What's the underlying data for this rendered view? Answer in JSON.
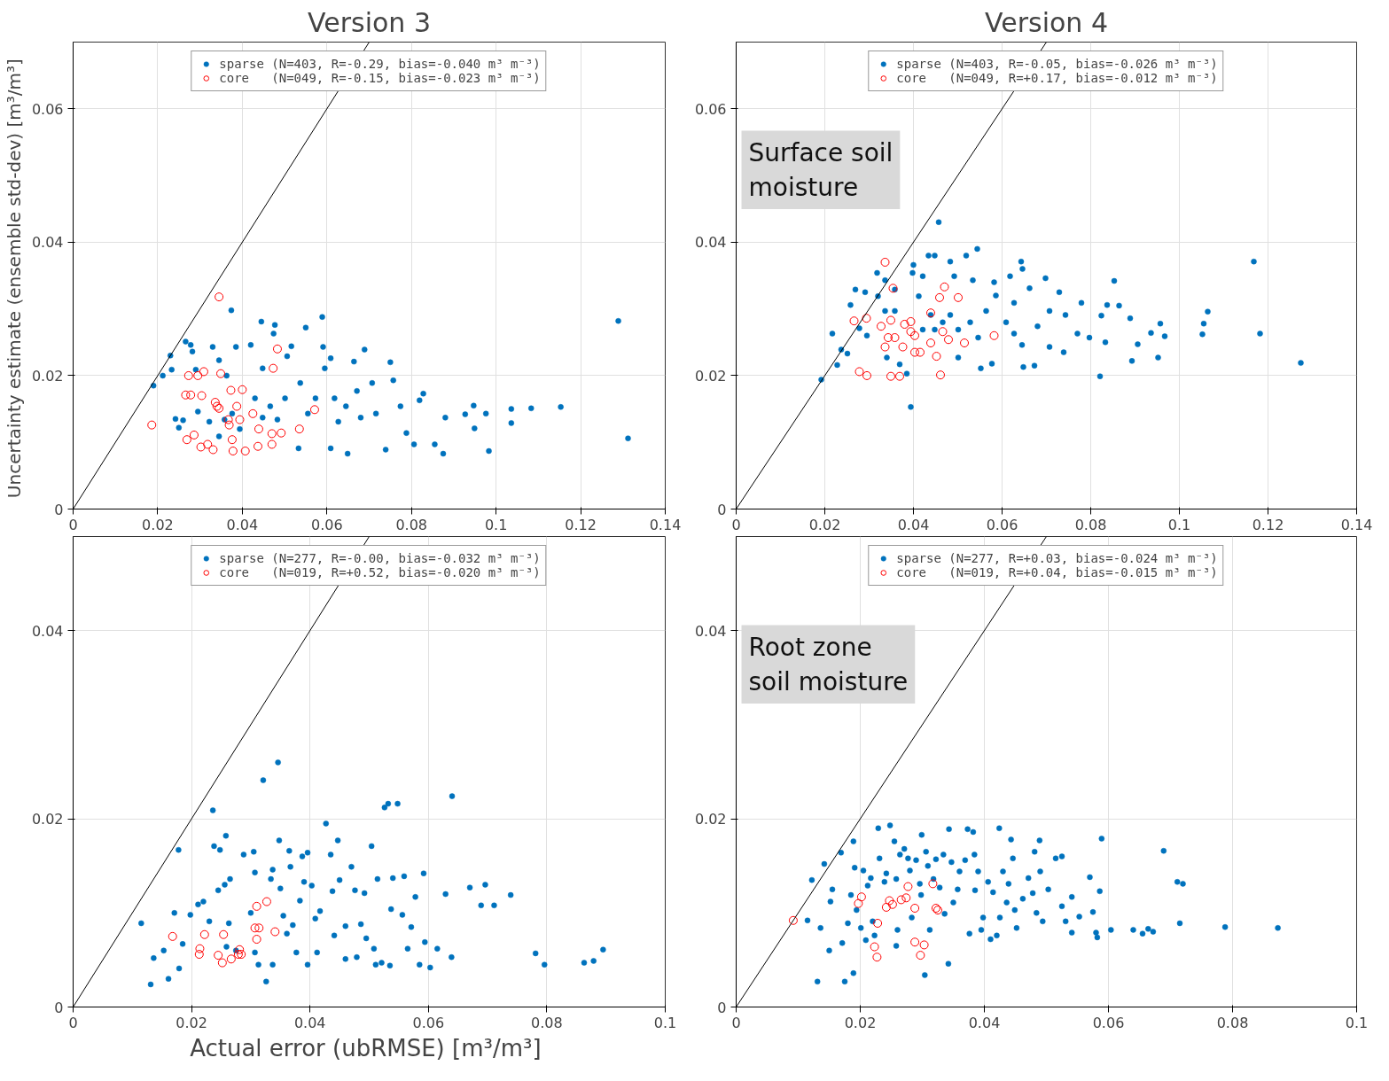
{
  "chart_data": [
    {
      "type": "scatter",
      "title": "Version 3",
      "ylabel": "Uncertainty estimate (ensemble std-dev)  [m³/m³]",
      "xlim": [
        0,
        0.14
      ],
      "ylim": [
        0,
        0.07
      ],
      "xticks": [
        0,
        0.02,
        0.04,
        0.06,
        0.08,
        0.1,
        0.12,
        0.14
      ],
      "yticks": [
        0,
        0.02,
        0.04,
        0.06
      ],
      "grid": true,
      "legend": "top",
      "marker": "circle",
      "series": [
        {
          "name": "sparse (N=403, R=-0.29, bias=-0.040 m³ m⁻³)",
          "color": "#0072bd",
          "x": [
            0.019,
            0.0212,
            0.023,
            0.0233,
            0.0266,
            0.0278,
            0.0282,
            0.0242,
            0.025,
            0.026,
            0.0295,
            0.029,
            0.033,
            0.0345,
            0.0374,
            0.0385,
            0.0363,
            0.0322,
            0.0345,
            0.0358,
            0.0376,
            0.0394,
            0.042,
            0.0445,
            0.0477,
            0.0474,
            0.0448,
            0.043,
            0.0448,
            0.0466,
            0.0483,
            0.0501,
            0.0506,
            0.0516,
            0.055,
            0.0533,
            0.0537,
            0.0555,
            0.0573,
            0.0589,
            0.0591,
            0.0595,
            0.0609,
            0.0609,
            0.0618,
            0.0627,
            0.0645,
            0.0649,
            0.0664,
            0.0671,
            0.068,
            0.0689,
            0.0707,
            0.0716,
            0.0739,
            0.075,
            0.0757,
            0.0774,
            0.0788,
            0.0806,
            0.0819,
            0.0828,
            0.0855,
            0.088,
            0.0875,
            0.0927,
            0.0947,
            0.0949,
            0.0976,
            0.0983,
            0.1036,
            0.1036,
            0.1083,
            0.1153,
            0.1289,
            0.1312
          ],
          "values": [
            0.0185,
            0.02,
            0.023,
            0.0209,
            0.0251,
            0.0246,
            0.0236,
            0.0135,
            0.0122,
            0.0133,
            0.0146,
            0.0209,
            0.0243,
            0.0223,
            0.0298,
            0.0243,
            0.02,
            0.0131,
            0.0109,
            0.0134,
            0.0143,
            0.012,
            0.0246,
            0.0281,
            0.0276,
            0.0263,
            0.0211,
            0.0166,
            0.0137,
            0.0154,
            0.0134,
            0.0166,
            0.0229,
            0.0244,
            0.0272,
            0.0091,
            0.0189,
            0.0143,
            0.0166,
            0.0288,
            0.0243,
            0.0211,
            0.0226,
            0.0091,
            0.0166,
            0.0131,
            0.0154,
            0.0083,
            0.0221,
            0.0177,
            0.0137,
            0.0239,
            0.0189,
            0.0143,
            0.0089,
            0.022,
            0.0193,
            0.0154,
            0.0114,
            0.0097,
            0.0163,
            0.0173,
            0.0097,
            0.0137,
            0.0083,
            0.0142,
            0.0155,
            0.0121,
            0.0143,
            0.0087,
            0.015,
            0.0129,
            0.0151,
            0.0153,
            0.0282,
            0.0106
          ]
        },
        {
          "name": "core   (N=049, R=-0.15, bias=-0.023 m³ m⁻³)",
          "color": "#ff0000",
          "x": [
            0.0345,
            0.0186,
            0.0273,
            0.0295,
            0.0309,
            0.0349,
            0.0266,
            0.0278,
            0.0304,
            0.0336,
            0.0345,
            0.0373,
            0.04,
            0.0387,
            0.0367,
            0.0394,
            0.0369,
            0.0425,
            0.0439,
            0.047,
            0.0483,
            0.0473,
            0.0492,
            0.0535,
            0.0571,
            0.0269,
            0.0286,
            0.0302,
            0.0318,
            0.0331,
            0.0376,
            0.0378,
            0.0407,
            0.0437,
            0.047,
            0.034
          ],
          "values": [
            0.0318,
            0.0126,
            0.02,
            0.02,
            0.0206,
            0.0203,
            0.0171,
            0.0171,
            0.017,
            0.016,
            0.0151,
            0.0178,
            0.0179,
            0.0154,
            0.0134,
            0.0134,
            0.0126,
            0.0143,
            0.012,
            0.0113,
            0.024,
            0.0211,
            0.0114,
            0.012,
            0.0149,
            0.0104,
            0.0111,
            0.0093,
            0.0097,
            0.0089,
            0.0104,
            0.0087,
            0.0087,
            0.0094,
            0.0097,
            0.0154
          ]
        },
        {
          "type": "line",
          "color": "#000000",
          "marker": "none",
          "x": [
            0,
            0.07
          ],
          "values": [
            0,
            0.07
          ]
        }
      ]
    },
    {
      "type": "scatter",
      "title": "Version 4",
      "annotations": [
        "Surface soil\nmoisture"
      ],
      "xlim": [
        0,
        0.14
      ],
      "ylim": [
        0,
        0.07
      ],
      "xticks": [
        0,
        0.02,
        0.04,
        0.06,
        0.08,
        0.1,
        0.12,
        0.14
      ],
      "yticks": [
        0,
        0.02,
        0.04,
        0.06
      ],
      "grid": true,
      "legend": "top",
      "marker": "circle",
      "series": [
        {
          "name": "sparse (N=403, R=-0.05, bias=-0.026 m³ m⁻³)",
          "color": "#0072bd",
          "x": [
            0.0192,
            0.0217,
            0.0237,
            0.0251,
            0.0228,
            0.0258,
            0.0269,
            0.0291,
            0.0278,
            0.0295,
            0.0318,
            0.032,
            0.0336,
            0.0358,
            0.0336,
            0.0358,
            0.034,
            0.0369,
            0.0385,
            0.0394,
            0.04,
            0.0398,
            0.0421,
            0.0434,
            0.0448,
            0.0457,
            0.0412,
            0.0421,
            0.0439,
            0.0448,
            0.0466,
            0.0483,
            0.0492,
            0.0519,
            0.0544,
            0.0534,
            0.0483,
            0.0501,
            0.0528,
            0.0546,
            0.0564,
            0.0582,
            0.0586,
            0.0501,
            0.0552,
            0.0577,
            0.0618,
            0.0643,
            0.0646,
            0.0627,
            0.0609,
            0.0627,
            0.0645,
            0.0648,
            0.0673,
            0.0662,
            0.068,
            0.0698,
            0.0707,
            0.0707,
            0.0729,
            0.0743,
            0.0739,
            0.077,
            0.0779,
            0.0797,
            0.0821,
            0.0824,
            0.0837,
            0.0833,
            0.0853,
            0.0864,
            0.0889,
            0.0893,
            0.0906,
            0.0936,
            0.0952,
            0.0957,
            0.0967,
            0.1052,
            0.1055,
            0.1064,
            0.1168,
            0.1182,
            0.1274
          ],
          "values": [
            0.0194,
            0.0263,
            0.0239,
            0.0233,
            0.0216,
            0.0306,
            0.0329,
            0.0325,
            0.0271,
            0.026,
            0.0354,
            0.0319,
            0.0343,
            0.0329,
            0.0297,
            0.0297,
            0.0227,
            0.0217,
            0.0203,
            0.0153,
            0.0366,
            0.0354,
            0.0349,
            0.038,
            0.038,
            0.043,
            0.0319,
            0.0269,
            0.0291,
            0.0269,
            0.028,
            0.0371,
            0.0349,
            0.038,
            0.039,
            0.0343,
            0.0291,
            0.0269,
            0.028,
            0.0257,
            0.0297,
            0.034,
            0.032,
            0.0227,
            0.0211,
            0.0218,
            0.0349,
            0.0371,
            0.036,
            0.0309,
            0.028,
            0.0263,
            0.0246,
            0.0213,
            0.0215,
            0.0331,
            0.0274,
            0.0346,
            0.0297,
            0.0243,
            0.0325,
            0.0291,
            0.0235,
            0.0263,
            0.0309,
            0.0257,
            0.0199,
            0.029,
            0.0306,
            0.025,
            0.0342,
            0.0305,
            0.0286,
            0.0222,
            0.0247,
            0.0264,
            0.0227,
            0.0278,
            0.0259,
            0.0262,
            0.0278,
            0.0296,
            0.0371,
            0.0263,
            0.0219
          ]
        },
        {
          "name": "core   (N=049, R=+0.17, bias=-0.012 m³ m⁻³)",
          "color": "#ff0000",
          "x": [
            0.0336,
            0.0266,
            0.0294,
            0.0354,
            0.0278,
            0.0295,
            0.0349,
            0.0369,
            0.0327,
            0.0349,
            0.0336,
            0.0358,
            0.038,
            0.0394,
            0.0376,
            0.0403,
            0.0403,
            0.0415,
            0.0439,
            0.0439,
            0.0452,
            0.0461,
            0.0459,
            0.047,
            0.0466,
            0.0479,
            0.0501,
            0.0515,
            0.0582,
            0.0343,
            0.0394
          ],
          "values": [
            0.037,
            0.0282,
            0.0286,
            0.0331,
            0.0206,
            0.02,
            0.0199,
            0.0199,
            0.0274,
            0.0283,
            0.0243,
            0.0257,
            0.0277,
            0.0281,
            0.0243,
            0.026,
            0.0235,
            0.0235,
            0.0294,
            0.0249,
            0.0229,
            0.0201,
            0.0317,
            0.0333,
            0.0266,
            0.0254,
            0.0317,
            0.0249,
            0.026,
            0.0257,
            0.0266
          ]
        },
        {
          "type": "line",
          "color": "#000000",
          "marker": "none",
          "x": [
            0,
            0.07
          ],
          "values": [
            0,
            0.07
          ]
        }
      ]
    },
    {
      "type": "scatter",
      "xlabel": "Actual error (ubRMSE)  [m³/m³]",
      "xlim": [
        0,
        0.1
      ],
      "ylim": [
        0,
        0.05
      ],
      "xticks": [
        0,
        0.02,
        0.04,
        0.06,
        0.08,
        0.1
      ],
      "yticks": [
        0,
        0.02,
        0.04
      ],
      "grid": true,
      "legend": "top",
      "marker": "circle",
      "series": [
        {
          "name": "sparse (N=277, R=-0.00, bias=-0.032 m³ m⁻³)",
          "color": "#0072bd",
          "x": [
            0.0115,
            0.0131,
            0.0136,
            0.0153,
            0.0161,
            0.0171,
            0.0178,
            0.0179,
            0.0185,
            0.0198,
            0.0211,
            0.022,
            0.023,
            0.0236,
            0.0238,
            0.0248,
            0.0245,
            0.0258,
            0.0256,
            0.0265,
            0.0263,
            0.0259,
            0.0275,
            0.0288,
            0.0305,
            0.0307,
            0.03,
            0.0307,
            0.0313,
            0.0321,
            0.0326,
            0.0334,
            0.0337,
            0.0337,
            0.0346,
            0.0348,
            0.035,
            0.0355,
            0.0361,
            0.0365,
            0.0371,
            0.0367,
            0.0377,
            0.0383,
            0.0387,
            0.039,
            0.0396,
            0.0396,
            0.0403,
            0.0409,
            0.0412,
            0.0417,
            0.0427,
            0.0435,
            0.0438,
            0.0441,
            0.0447,
            0.045,
            0.046,
            0.046,
            0.047,
            0.0476,
            0.0479,
            0.0486,
            0.0492,
            0.0495,
            0.0504,
            0.0508,
            0.0511,
            0.0514,
            0.0521,
            0.0526,
            0.0532,
            0.0535,
            0.0537,
            0.054,
            0.0548,
            0.0556,
            0.0559,
            0.0565,
            0.0571,
            0.0578,
            0.0585,
            0.0592,
            0.0594,
            0.0603,
            0.0615,
            0.0629,
            0.0639,
            0.064,
            0.067,
            0.0689,
            0.0696,
            0.0711,
            0.0739,
            0.0781,
            0.0796,
            0.0863,
            0.0879,
            0.0895
          ],
          "values": [
            0.0089,
            0.0024,
            0.0052,
            0.006,
            0.003,
            0.01,
            0.0167,
            0.0041,
            0.0067,
            0.0098,
            0.0109,
            0.0112,
            0.0091,
            0.0209,
            0.0171,
            0.0167,
            0.0124,
            0.0182,
            0.013,
            0.0136,
            0.0089,
            0.0064,
            0.006,
            0.0162,
            0.0165,
            0.0143,
            0.01,
            0.0058,
            0.0045,
            0.0241,
            0.0027,
            0.0136,
            0.0146,
            0.0045,
            0.026,
            0.0177,
            0.0126,
            0.0097,
            0.0078,
            0.0166,
            0.0087,
            0.0149,
            0.0058,
            0.0113,
            0.016,
            0.0133,
            0.0164,
            0.0045,
            0.0129,
            0.0094,
            0.0058,
            0.0102,
            0.0195,
            0.0162,
            0.0123,
            0.0076,
            0.0177,
            0.0135,
            0.0051,
            0.0086,
            0.0149,
            0.0124,
            0.0053,
            0.0088,
            0.0121,
            0.0073,
            0.0171,
            0.0062,
            0.0045,
            0.0136,
            0.0047,
            0.0212,
            0.0216,
            0.0044,
            0.0104,
            0.0137,
            0.0216,
            0.0098,
            0.0139,
            0.0062,
            0.0085,
            0.0117,
            0.0045,
            0.0142,
            0.0069,
            0.0042,
            0.0062,
            0.012,
            0.0053,
            0.0224,
            0.0127,
            0.0108,
            0.013,
            0.0108,
            0.0119,
            0.0057,
            0.0045,
            0.0047,
            0.0049,
            0.0061
          ]
        },
        {
          "name": "core   (N=019, R=+0.52, bias=-0.020 m³ m⁻³)",
          "color": "#ff0000",
          "x": [
            0.0168,
            0.0214,
            0.0213,
            0.0222,
            0.0254,
            0.0245,
            0.0252,
            0.0267,
            0.0281,
            0.0284,
            0.031,
            0.0327,
            0.0307,
            0.0314,
            0.031,
            0.0341,
            0.0279
          ],
          "values": [
            0.0075,
            0.0062,
            0.0056,
            0.0077,
            0.0077,
            0.0055,
            0.0047,
            0.0051,
            0.0061,
            0.0056,
            0.0107,
            0.0112,
            0.0084,
            0.0084,
            0.0072,
            0.008,
            0.0056
          ]
        },
        {
          "type": "line",
          "color": "#000000",
          "marker": "none",
          "x": [
            0,
            0.05
          ],
          "values": [
            0,
            0.05
          ]
        }
      ]
    },
    {
      "type": "scatter",
      "annotations": [
        "Root zone\nsoil moisture"
      ],
      "xlim": [
        0,
        0.1
      ],
      "ylim": [
        0,
        0.05
      ],
      "xticks": [
        0,
        0.02,
        0.04,
        0.06,
        0.08,
        0.1
      ],
      "yticks": [
        0,
        0.02,
        0.04
      ],
      "grid": true,
      "legend": "top",
      "marker": "circle",
      "series": [
        {
          "name": "sparse (N=277, R=+0.03, bias=-0.024 m³ m⁻³)",
          "color": "#0072bd",
          "x": [
            0.0115,
            0.0122,
            0.0131,
            0.0136,
            0.0142,
            0.015,
            0.0152,
            0.0155,
            0.0169,
            0.0171,
            0.0175,
            0.018,
            0.0185,
            0.0189,
            0.0189,
            0.0191,
            0.0194,
            0.0201,
            0.0205,
            0.0209,
            0.0212,
            0.0217,
            0.022,
            0.0223,
            0.0229,
            0.0231,
            0.0239,
            0.0242,
            0.0248,
            0.0255,
            0.0258,
            0.026,
            0.0258,
            0.0264,
            0.0271,
            0.0277,
            0.028,
            0.0283,
            0.029,
            0.0296,
            0.0298,
            0.0299,
            0.0304,
            0.0306,
            0.0309,
            0.0312,
            0.0318,
            0.0322,
            0.0328,
            0.0334,
            0.0336,
            0.0342,
            0.0343,
            0.0347,
            0.035,
            0.0357,
            0.036,
            0.0369,
            0.0373,
            0.0376,
            0.0382,
            0.0384,
            0.0385,
            0.039,
            0.0395,
            0.0398,
            0.0406,
            0.041,
            0.0414,
            0.042,
            0.0424,
            0.0425,
            0.043,
            0.0436,
            0.0439,
            0.0443,
            0.0446,
            0.0449,
            0.0452,
            0.0462,
            0.0471,
            0.0478,
            0.0481,
            0.0484,
            0.0489,
            0.049,
            0.0494,
            0.0503,
            0.0515,
            0.0525,
            0.0525,
            0.0531,
            0.0541,
            0.0541,
            0.0553,
            0.057,
            0.0575,
            0.058,
            0.0582,
            0.0586,
            0.0589,
            0.0604,
            0.064,
            0.0655,
            0.0664,
            0.0672,
            0.0689,
            0.0711,
            0.072,
            0.0715,
            0.0788,
            0.0873
          ],
          "values": [
            0.0092,
            0.0135,
            0.0027,
            0.0084,
            0.0152,
            0.006,
            0.0112,
            0.0125,
            0.0164,
            0.0068,
            0.0027,
            0.0089,
            0.0119,
            0.0176,
            0.0036,
            0.0148,
            0.0103,
            0.0084,
            0.0145,
            0.0071,
            0.0129,
            0.0137,
            0.0091,
            0.0076,
            0.019,
            0.0158,
            0.0133,
            0.0142,
            0.0193,
            0.0176,
            0.0136,
            0.0082,
            0.0065,
            0.0162,
            0.0168,
            0.0158,
            0.0145,
            0.0095,
            0.0156,
            0.0131,
            0.0119,
            0.0183,
            0.0034,
            0.0165,
            0.015,
            0.0082,
            0.0136,
            0.0157,
            0.0127,
            0.0162,
            0.0099,
            0.0046,
            0.0189,
            0.0154,
            0.0111,
            0.0125,
            0.0144,
            0.0156,
            0.0189,
            0.0078,
            0.0186,
            0.0162,
            0.0124,
            0.0144,
            0.0082,
            0.0095,
            0.0133,
            0.0072,
            0.0122,
            0.0076,
            0.019,
            0.0095,
            0.0144,
            0.0111,
            0.0131,
            0.0178,
            0.0158,
            0.0103,
            0.0084,
            0.0115,
            0.0137,
            0.0121,
            0.0165,
            0.01,
            0.0177,
            0.0144,
            0.0091,
            0.0125,
            0.0158,
            0.016,
            0.0107,
            0.0091,
            0.0117,
            0.0079,
            0.0096,
            0.0138,
            0.0101,
            0.0079,
            0.0074,
            0.0123,
            0.0179,
            0.0082,
            0.0082,
            0.0078,
            0.0083,
            0.008,
            0.0166,
            0.0133,
            0.0131,
            0.0089,
            0.0085,
            0.0084
          ]
        },
        {
          "name": "core   (N=019, R=+0.04, bias=-0.015 m³ m⁻³)",
          "color": "#ff0000",
          "x": [
            0.0092,
            0.0202,
            0.0197,
            0.0228,
            0.0223,
            0.0227,
            0.0242,
            0.0247,
            0.0252,
            0.0266,
            0.0274,
            0.0277,
            0.0288,
            0.0288,
            0.0303,
            0.0297,
            0.0317,
            0.0325,
            0.0322
          ],
          "values": [
            0.0092,
            0.0117,
            0.011,
            0.0089,
            0.0064,
            0.0053,
            0.0106,
            0.0113,
            0.0109,
            0.0114,
            0.0116,
            0.0128,
            0.0105,
            0.0069,
            0.0066,
            0.0055,
            0.0131,
            0.0103,
            0.0105
          ]
        },
        {
          "type": "line",
          "color": "#000000",
          "marker": "none",
          "x": [
            0,
            0.05
          ],
          "values": [
            0,
            0.05
          ]
        }
      ]
    }
  ]
}
